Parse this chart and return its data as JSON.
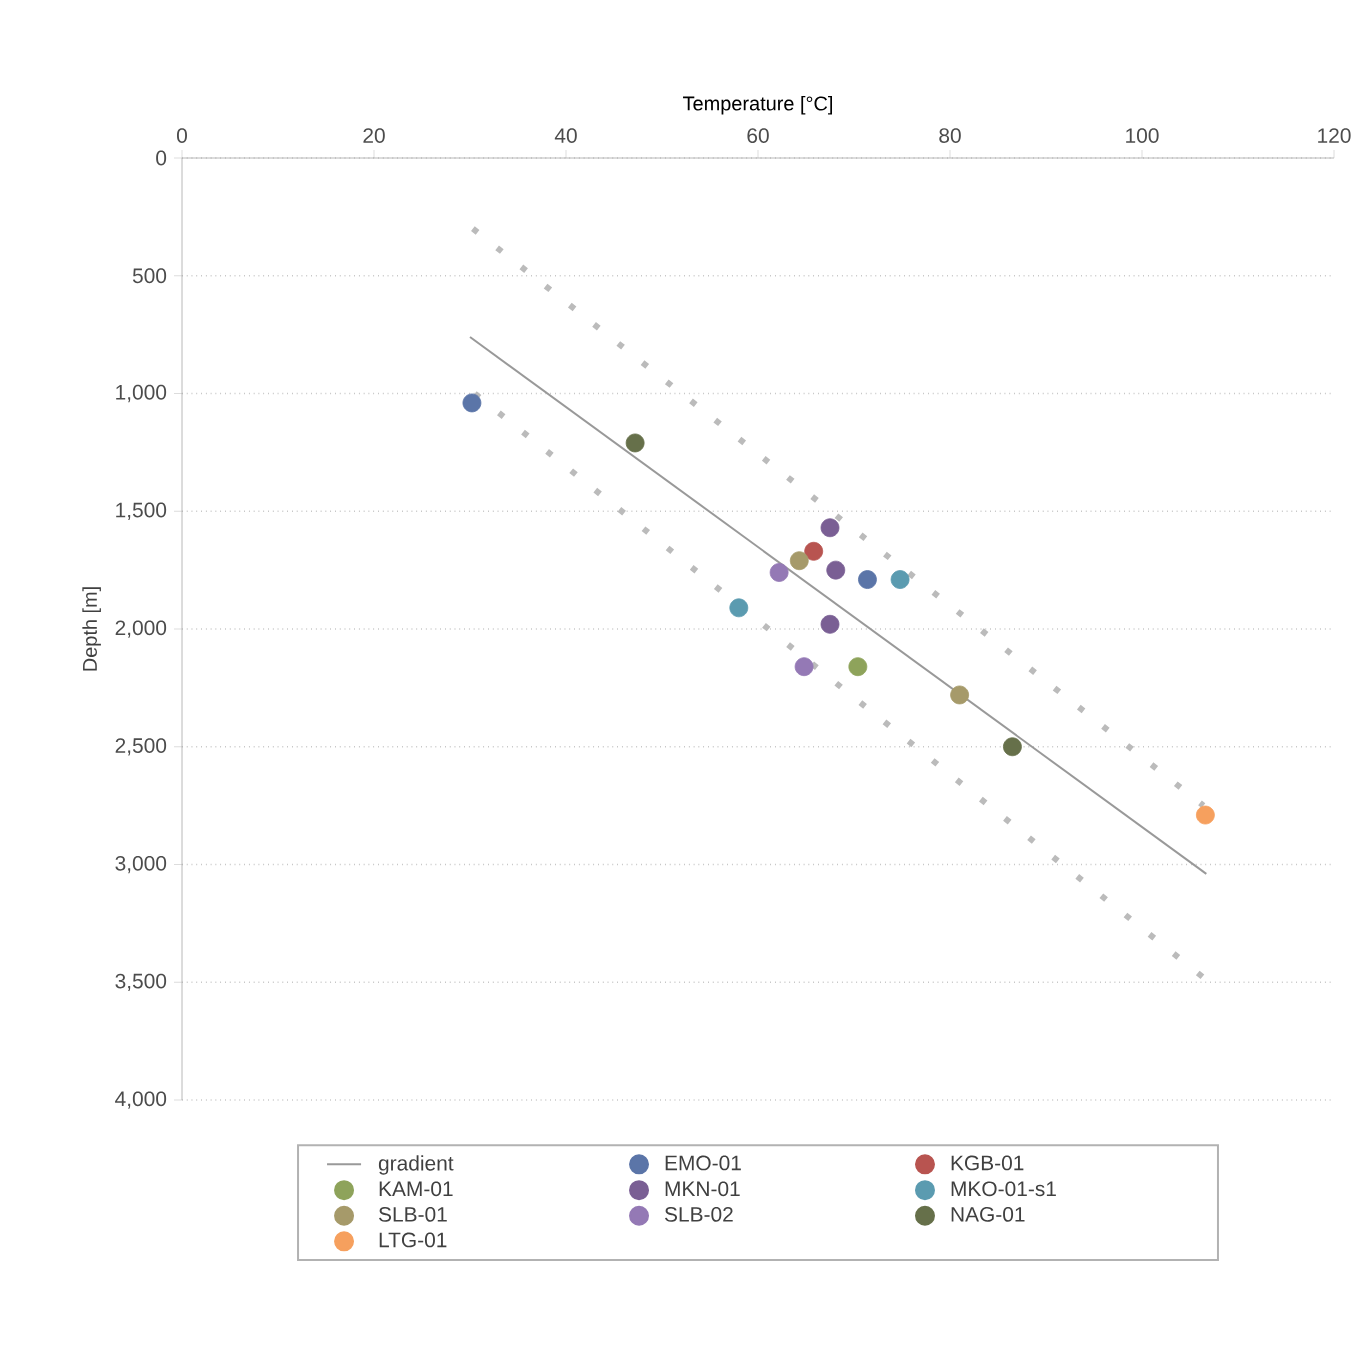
{
  "chart_data": {
    "type": "scatter",
    "xlabel": "Temperature [°C]",
    "ylabel": "Depth [m]",
    "xlim": [
      0,
      120
    ],
    "xticks": [
      0,
      20,
      40,
      60,
      80,
      100,
      120
    ],
    "ylim": [
      4000,
      0
    ],
    "yticks": [
      0,
      500,
      {
        "value": 1000,
        "label": "1,000"
      },
      {
        "value": 1500,
        "label": "1,500"
      },
      {
        "value": 2000,
        "label": "2,000"
      },
      {
        "value": 2500,
        "label": "2,500"
      },
      {
        "value": 3000,
        "label": "3,000"
      },
      {
        "value": 3500,
        "label": "3,500"
      },
      {
        "value": 4000,
        "label": "4,000"
      }
    ],
    "grid": "y",
    "legend": "bottom",
    "series": [
      {
        "name": "gradient",
        "type": "line",
        "marker": "none",
        "line_style": "solid",
        "color": "#999999",
        "x": [
          30,
          106.7
        ],
        "values": [
          760,
          3040
        ]
      },
      {
        "type": "line",
        "marker": "none",
        "line_style": "dotted",
        "color": "#bbbbbb",
        "x": [
          30.3,
          106.4
        ],
        "values": [
          300,
          2750
        ]
      },
      {
        "type": "line",
        "marker": "none",
        "line_style": "dotted",
        "color": "#bbbbbb",
        "x": [
          30.5,
          106.4
        ],
        "values": [
          1000,
          3480
        ]
      },
      {
        "name": "EMO-01",
        "marker": "circle",
        "color": "#5b75a8",
        "x": [
          30.2,
          71.4
        ],
        "values": [
          1040,
          1790
        ]
      },
      {
        "name": "KGB-01",
        "marker": "circle",
        "color": "#b85450",
        "x": [
          65.8
        ],
        "values": [
          1670
        ]
      },
      {
        "name": "KAM-01",
        "marker": "circle",
        "color": "#8ea35b",
        "x": [
          70.4
        ],
        "values": [
          2160
        ]
      },
      {
        "name": "MKN-01",
        "marker": "circle",
        "color": "#7a5f94",
        "x": [
          67.5,
          68.1,
          67.5
        ],
        "values": [
          1570,
          1750,
          1980
        ]
      },
      {
        "name": "MKO-01-s1",
        "marker": "circle",
        "color": "#5b9bb0",
        "x": [
          74.8,
          58.0
        ],
        "values": [
          1790,
          1910
        ]
      },
      {
        "name": "SLB-01",
        "marker": "circle",
        "color": "#a69a6a",
        "x": [
          64.3,
          81.0
        ],
        "values": [
          1710,
          2280
        ]
      },
      {
        "name": "SLB-02",
        "marker": "circle",
        "color": "#9479b5",
        "x": [
          62.2,
          64.8
        ],
        "values": [
          1760,
          2160
        ]
      },
      {
        "name": "NAG-01",
        "marker": "circle",
        "color": "#66704a",
        "x": [
          47.2,
          86.5
        ],
        "values": [
          1210,
          2500
        ]
      },
      {
        "name": "LTG-01",
        "marker": "circle",
        "color": "#f6a05e",
        "x": [
          106.6
        ],
        "values": [
          2790
        ]
      }
    ]
  }
}
